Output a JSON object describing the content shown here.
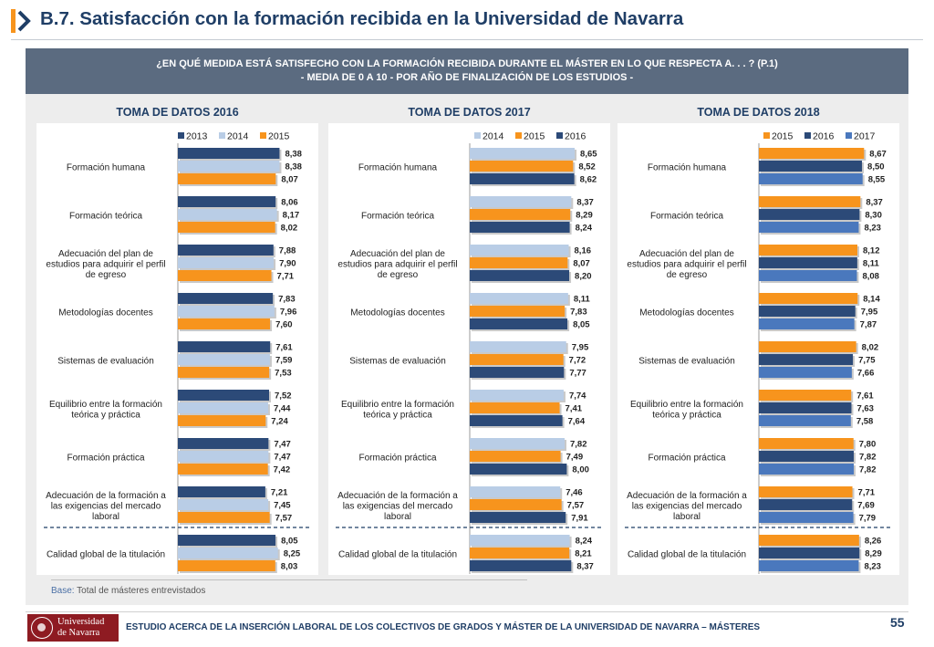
{
  "header": {
    "title": "B.7. Satisfacción con la formación recibida en la Universidad de Navarra",
    "question_line1": "¿EN QUÉ MEDIDA ESTÁ SATISFECHO CON LA FORMACIÓN RECIBIDA DURANTE EL MÁSTER EN LO QUE RESPECTA A. . . ? (P.1)",
    "question_line2": "- MEDIA DE 0 A 10 - POR AÑO DE FINALIZACIÓN DE LOS ESTUDIOS -"
  },
  "colors": {
    "title_blue": "#1f3e66",
    "dark_blue": "#2c4a78",
    "light_blue": "#b9cde6",
    "orange": "#f7941d",
    "mid_blue": "#4a78bd"
  },
  "chart_data": [
    {
      "type": "bar",
      "orientation": "horizontal",
      "title": "TOMA DE DATOS 2016",
      "categories": [
        [
          "Formación humana"
        ],
        [
          "Formación teórica"
        ],
        [
          "Adecuación del plan de",
          "estudios para adquirir el perfil",
          "de egreso"
        ],
        [
          "Metodologías docentes"
        ],
        [
          "Sistemas de evaluación"
        ],
        [
          "Equilibrio entre la formación",
          "teórica y práctica"
        ],
        [
          "Formación práctica"
        ],
        [
          "Adecuación de la formación a",
          "las exigencias del mercado",
          "laboral"
        ],
        [
          "Calidad global de la titulación"
        ]
      ],
      "series": [
        {
          "name": "2013",
          "color": "#2c4a78",
          "values": [
            "8,38",
            "8,06",
            "7,88",
            "7,83",
            "7,61",
            "7,52",
            "7,47",
            "7,21",
            "8,05"
          ]
        },
        {
          "name": "2014",
          "color": "#b9cde6",
          "values": [
            "8,38",
            "8,17",
            "7,90",
            "7,96",
            "7,59",
            "7,44",
            "7,47",
            "7,45",
            "8,25"
          ]
        },
        {
          "name": "2015",
          "color": "#f7941d",
          "values": [
            "8,07",
            "8,02",
            "7,71",
            "7,60",
            "7,53",
            "7,24",
            "7,42",
            "7,57",
            "8,03"
          ]
        }
      ],
      "xlim": [
        0,
        10
      ],
      "legend": "top"
    },
    {
      "type": "bar",
      "orientation": "horizontal",
      "title": "TOMA DE DATOS 2017",
      "categories": [
        [
          "Formación humana"
        ],
        [
          "Formación teórica"
        ],
        [
          "Adecuación del plan de",
          "estudios para adquirir el perfil",
          "de egreso"
        ],
        [
          "Metodologías docentes"
        ],
        [
          "Sistemas de evaluación"
        ],
        [
          "Equilibrio entre la formación",
          "teórica y práctica"
        ],
        [
          "Formación práctica"
        ],
        [
          "Adecuación de la formación a",
          "las exigencias del mercado",
          "laboral"
        ],
        [
          "Calidad global de la titulación"
        ]
      ],
      "series": [
        {
          "name": "2014",
          "color": "#b9cde6",
          "values": [
            "8,65",
            "8,37",
            "8,16",
            "8,11",
            "7,95",
            "7,74",
            "7,82",
            "7,46",
            "8,24"
          ]
        },
        {
          "name": "2015",
          "color": "#f7941d",
          "values": [
            "8,52",
            "8,29",
            "8,07",
            "7,83",
            "7,72",
            "7,41",
            "7,49",
            "7,57",
            "8,21"
          ]
        },
        {
          "name": "2016",
          "color": "#2c4a78",
          "values": [
            "8,62",
            "8,24",
            "8,20",
            "8,05",
            "7,77",
            "7,64",
            "8,00",
            "7,91",
            "8,37"
          ]
        }
      ],
      "xlim": [
        0,
        10
      ],
      "legend": "top"
    },
    {
      "type": "bar",
      "orientation": "horizontal",
      "title": "TOMA DE DATOS 2018",
      "categories": [
        [
          "Formación humana"
        ],
        [
          "Formación teórica"
        ],
        [
          "Adecuación del plan de",
          "estudios para adquirir el perfil",
          "de egreso"
        ],
        [
          "Metodologías docentes"
        ],
        [
          "Sistemas de evaluación"
        ],
        [
          "Equilibrio entre la formación",
          "teórica y práctica"
        ],
        [
          "Formación práctica"
        ],
        [
          "Adecuación de la formación a",
          "las exigencias del mercado",
          "laboral"
        ],
        [
          "Calidad global de la titulación"
        ]
      ],
      "series": [
        {
          "name": "2015",
          "color": "#f7941d",
          "values": [
            "8,67",
            "8,37",
            "8,12",
            "8,14",
            "8,02",
            "7,61",
            "7,80",
            "7,71",
            "8,26"
          ]
        },
        {
          "name": "2016",
          "color": "#2c4a78",
          "values": [
            "8,50",
            "8,30",
            "8,11",
            "7,95",
            "7,75",
            "7,63",
            "7,82",
            "7,69",
            "8,29"
          ]
        },
        {
          "name": "2017",
          "color": "#4a78bd",
          "values": [
            "8,55",
            "8,23",
            "8,08",
            "7,87",
            "7,66",
            "7,58",
            "7,82",
            "7,79",
            "8,23"
          ]
        }
      ],
      "xlim": [
        0,
        10
      ],
      "legend": "top"
    }
  ],
  "base_note": {
    "label": "Base:",
    "text": " Total de másteres entrevistados"
  },
  "footer": {
    "logo_line1": "Universidad",
    "logo_line2": "de Navarra",
    "text": "ESTUDIO ACERCA DE LA INSERCIÓN LABORAL DE LOS COLECTIVOS DE GRADOS Y MÁSTER DE LA UNIVERSIDAD DE NAVARRA – MÁSTERES",
    "page_number": "55"
  }
}
